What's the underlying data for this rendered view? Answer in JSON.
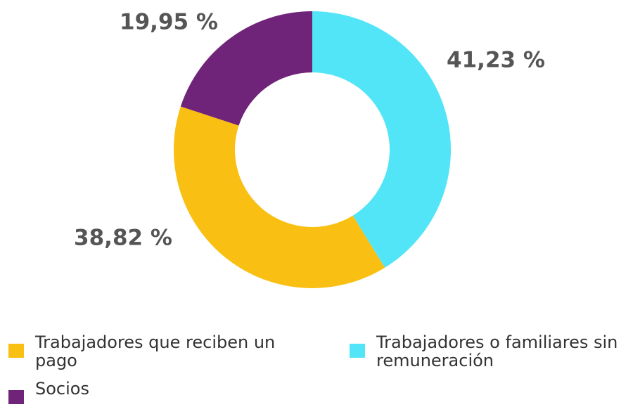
{
  "chart_data": {
    "type": "donut",
    "categories": [
      "Trabajadores o familiares sin remuneración",
      "Trabajadores que reciben un pago",
      "Socios"
    ],
    "values": [
      41.23,
      38.82,
      19.95
    ],
    "value_labels": [
      "41,23 %",
      "38,82 %",
      "19,95 %"
    ],
    "colors": [
      "#52e5f7",
      "#f9c013",
      "#702479"
    ]
  }
}
